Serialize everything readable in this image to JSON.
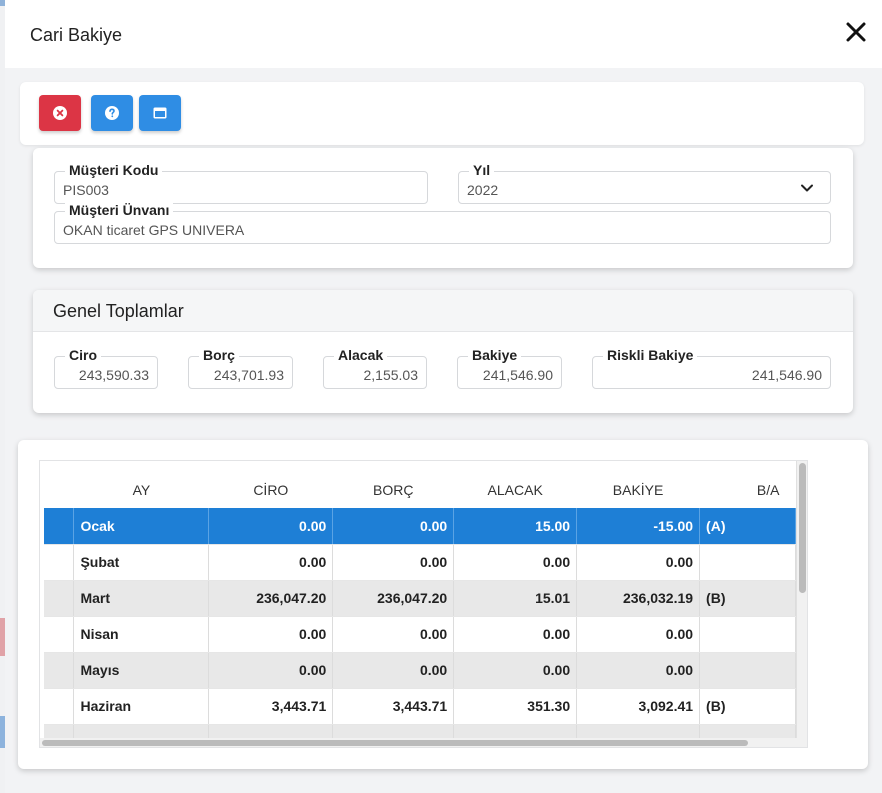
{
  "modal": {
    "title": "Cari Bakiye"
  },
  "toolbar": {
    "buttons": [
      {
        "icon": "close-circle-icon",
        "color": "#dc3545"
      },
      {
        "icon": "help-circle-icon",
        "color": "#2f8de4"
      },
      {
        "icon": "window-icon",
        "color": "#2f8de4"
      }
    ]
  },
  "customer": {
    "code_label": "Müşteri Kodu",
    "code_value": "PIS003",
    "year_label": "Yıl",
    "year_value": "2022",
    "title_label": "Müşteri Ünvanı",
    "title_value": "OKAN ticaret GPS UNIVERA"
  },
  "totals": {
    "heading": "Genel Toplamlar",
    "ciro_label": "Ciro",
    "ciro_value": "243,590.33",
    "borc_label": "Borç",
    "borc_value": "243,701.93",
    "alacak_label": "Alacak",
    "alacak_value": "2,155.03",
    "bakiye_label": "Bakiye",
    "bakiye_value": "241,546.90",
    "riskli_label": "Riskli Bakiye",
    "riskli_value": "241,546.90"
  },
  "grid": {
    "columns": [
      "AY",
      "CİRO",
      "BORÇ",
      "ALACAK",
      "BAKİYE",
      "B/A"
    ],
    "rows": [
      {
        "ay": "Ocak",
        "ciro": "0.00",
        "borc": "0.00",
        "alacak": "15.00",
        "bakiye": "-15.00",
        "ba": "(A)"
      },
      {
        "ay": "Şubat",
        "ciro": "0.00",
        "borc": "0.00",
        "alacak": "0.00",
        "bakiye": "0.00",
        "ba": ""
      },
      {
        "ay": "Mart",
        "ciro": "236,047.20",
        "borc": "236,047.20",
        "alacak": "15.01",
        "bakiye": "236,032.19",
        "ba": "(B)"
      },
      {
        "ay": "Nisan",
        "ciro": "0.00",
        "borc": "0.00",
        "alacak": "0.00",
        "bakiye": "0.00",
        "ba": ""
      },
      {
        "ay": "Mayıs",
        "ciro": "0.00",
        "borc": "0.00",
        "alacak": "0.00",
        "bakiye": "0.00",
        "ba": ""
      },
      {
        "ay": "Haziran",
        "ciro": "3,443.71",
        "borc": "3,443.71",
        "alacak": "351.30",
        "bakiye": "3,092.41",
        "ba": "(B)"
      }
    ],
    "selected_color": "#1e7fd6"
  }
}
